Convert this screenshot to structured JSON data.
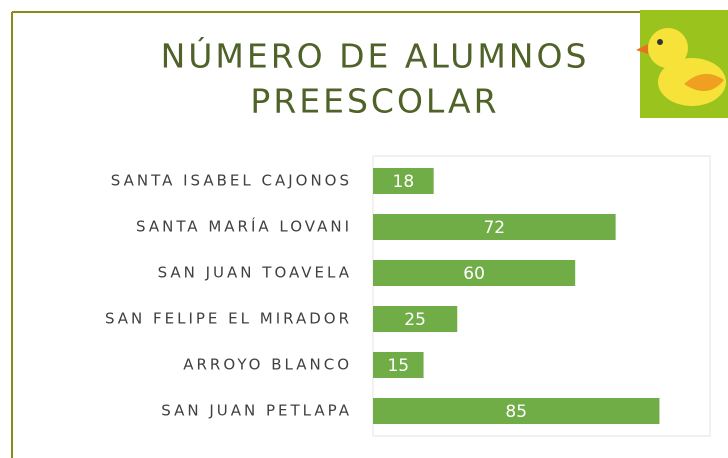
{
  "chart_data": {
    "type": "bar",
    "orientation": "horizontal",
    "title": [
      "NÚMERO DE ALUMNOS",
      "PREESCOLAR"
    ],
    "categories": [
      "SANTA ISABEL CAJONOS",
      "SANTA MARÍA LOVANI",
      "SAN JUAN TOAVELA",
      "SAN FELIPE EL MIRADOR",
      "ARROYO BLANCO",
      "SAN JUAN PETLAPA"
    ],
    "values": [
      18,
      72,
      60,
      25,
      15,
      85
    ],
    "color": "#70ad47",
    "xlim": [
      0,
      100
    ]
  }
}
